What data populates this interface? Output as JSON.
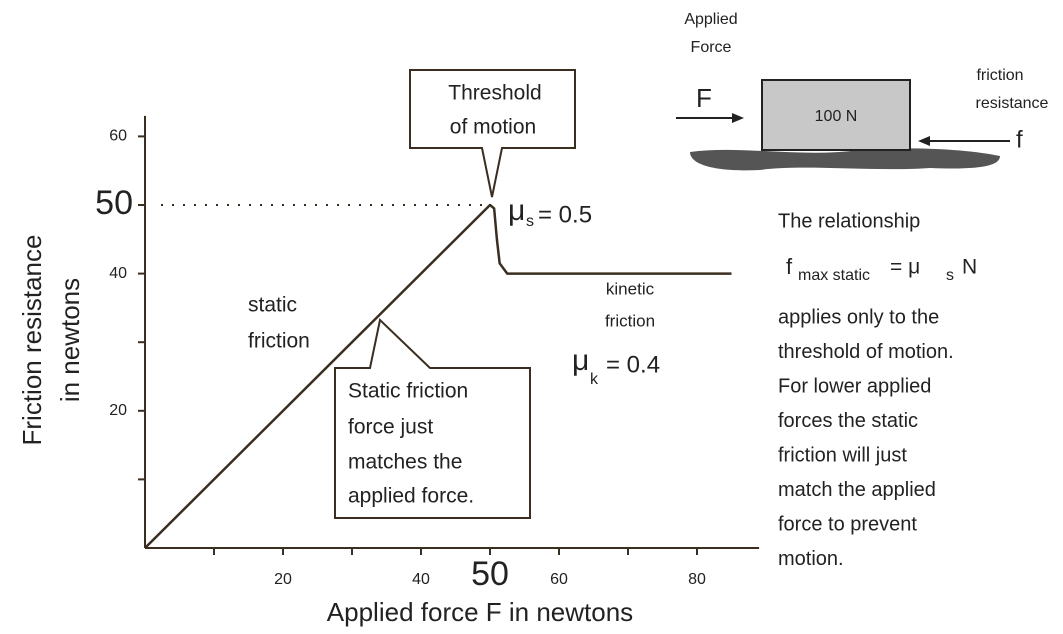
{
  "chart_data": {
    "type": "line",
    "x_label": "Applied force F in newtons",
    "y_label": [
      "Friction resistance",
      "in newtons"
    ],
    "xlim": [
      0,
      89
    ],
    "ylim": [
      0,
      63
    ],
    "xticks": [
      20,
      40,
      60,
      80
    ],
    "yticks": [
      20,
      40,
      60
    ],
    "xminor_ticks": [
      10,
      30,
      50,
      70
    ],
    "yminor_ticks": [
      10,
      30,
      50
    ],
    "highlight": {
      "x": 50,
      "y": 50
    },
    "series": [
      {
        "color": "#3a2e20",
        "x": [
          0,
          50,
          50.6,
          51,
          51.4,
          52.5,
          85
        ],
        "values": [
          0,
          50,
          49.5,
          45,
          41.5,
          40,
          40
        ]
      }
    ],
    "annotations": {
      "threshold": [
        "Threshold",
        "of motion"
      ],
      "static": [
        "static",
        "friction"
      ],
      "kinetic": [
        "kinetic",
        "friction"
      ],
      "callout": [
        "Static friction",
        "force just",
        "matches the",
        "applied force."
      ],
      "mu_s": {
        "symbol": "μ",
        "subscript": "s",
        "text": "= 0.5"
      },
      "mu_k": {
        "symbol": "μ",
        "subscript": "k",
        "text": "= 0.4"
      }
    }
  },
  "diagram": {
    "applied_force": [
      "Applied",
      "Force"
    ],
    "force_symbol": "F",
    "block": "100 N",
    "friction": [
      "friction",
      "resistance"
    ],
    "friction_symbol": "f"
  },
  "explanation": {
    "intro": "The relationship",
    "formula": {
      "base": "f",
      "subscript": "max static",
      "eq": "= μ",
      "subscript2": "s",
      "tail": "N"
    },
    "lines": [
      "applies only to the",
      "threshold of motion.",
      "For lower applied",
      "forces the static",
      "friction will just",
      "match the applied",
      "force to prevent",
      "motion."
    ]
  }
}
